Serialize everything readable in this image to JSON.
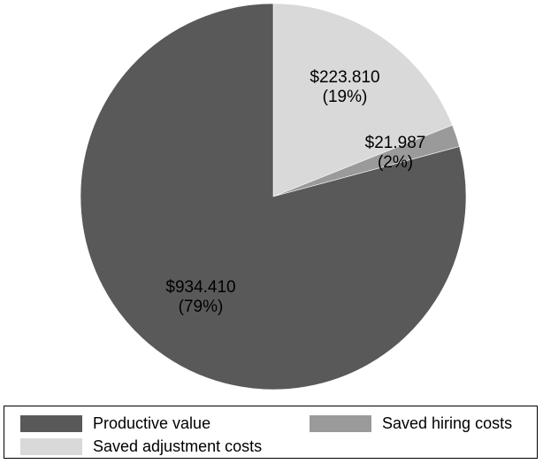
{
  "chart_data": {
    "type": "pie",
    "title": "",
    "slices": [
      {
        "name": "Saved adjustment costs",
        "value": 223.81,
        "percent_label": "(19%)",
        "value_label": "$223.810",
        "color": "#d9d9d9"
      },
      {
        "name": "Saved hiring costs",
        "value": 21.987,
        "percent_label": "(2%)",
        "value_label": "$21.987",
        "color": "#9a9a9a"
      },
      {
        "name": "Productive value",
        "value": 934.41,
        "percent_label": "(79%)",
        "value_label": "$934.410",
        "color": "#595959"
      }
    ],
    "start_angle": "12 o'clock",
    "direction": "clockwise",
    "legend_position": "bottom"
  },
  "legend": {
    "items": [
      {
        "label": "Productive value",
        "color": "#595959"
      },
      {
        "label": "Saved hiring costs",
        "color": "#9a9a9a"
      },
      {
        "label": "Saved adjustment costs",
        "color": "#d9d9d9"
      }
    ]
  }
}
